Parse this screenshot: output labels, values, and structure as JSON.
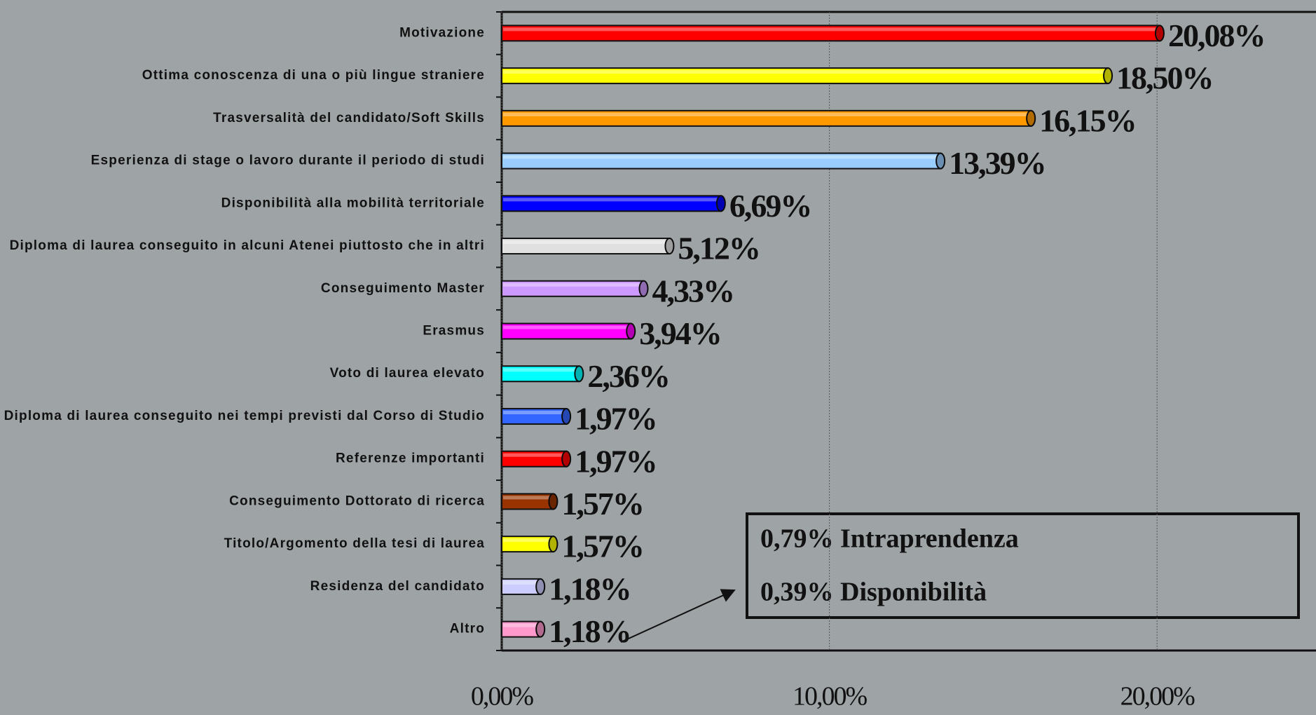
{
  "chart_data": {
    "type": "bar",
    "orientation": "horizontal",
    "categories": [
      "Motivazione",
      "Ottima conoscenza di una o più lingue straniere",
      "Trasversalità del candidato/Soft Skills",
      "Esperienza di stage o lavoro durante il periodo di studi",
      "Disponibilità alla mobilità territoriale",
      "Diploma di laurea conseguito in alcuni Atenei piuttosto che in altri",
      "Conseguimento Master",
      "Erasmus",
      "Voto di laurea elevato",
      "Diploma di laurea conseguito nei tempi previsti dal Corso di Studio",
      "Referenze importanti",
      "Conseguimento Dottorato di ricerca",
      "Titolo/Argomento della tesi di laurea",
      "Residenza del candidato",
      "Altro"
    ],
    "values": [
      20.08,
      18.5,
      16.15,
      13.39,
      6.69,
      5.12,
      4.33,
      3.94,
      2.36,
      1.97,
      1.97,
      1.57,
      1.57,
      1.18,
      1.18
    ],
    "value_labels": [
      "20,08%",
      "18,50%",
      "16,15%",
      "13,39%",
      "6,69%",
      "5,12%",
      "4,33%",
      "3,94%",
      "2,36%",
      "1,97%",
      "1,97%",
      "1,57%",
      "1,57%",
      "1,18%",
      "1,18%"
    ],
    "colors": [
      "#ff0000",
      "#ffff00",
      "#ff9900",
      "#99ccff",
      "#0000ff",
      "#e0e0e0",
      "#cc99ff",
      "#ff00ff",
      "#00ffff",
      "#3366ff",
      "#ff0000",
      "#993300",
      "#ffff00",
      "#ccccff",
      "#ff99cc"
    ],
    "xlim": [
      0,
      25
    ],
    "xticks": [
      {
        "value": 0,
        "label": "0,00%"
      },
      {
        "value": 10,
        "label": "10,00%"
      },
      {
        "value": 20,
        "label": "20,00%"
      }
    ],
    "grid": true,
    "annotations": [
      "0,79% Intraprendenza",
      "0,39% Disponibilità"
    ]
  }
}
